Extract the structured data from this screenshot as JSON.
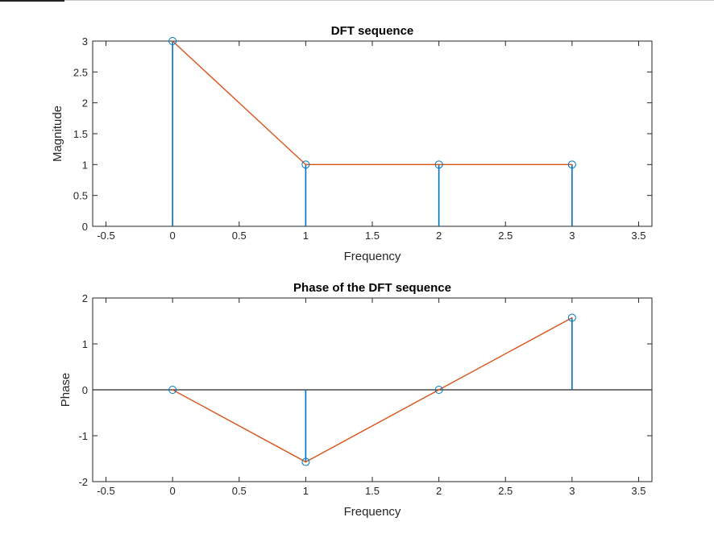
{
  "chart_data": [
    {
      "type": "stem",
      "title": "DFT sequence",
      "xlabel": "Frequency",
      "ylabel": "Magnitude",
      "xlim": [
        -0.6,
        3.6
      ],
      "ylim": [
        0,
        3
      ],
      "xticks": [
        "-0.5",
        "0",
        "0.5",
        "1",
        "1.5",
        "2",
        "2.5",
        "3",
        "3.5"
      ],
      "yticks": [
        "0",
        "0.5",
        "1",
        "1.5",
        "2",
        "2.5",
        "3"
      ],
      "x": [
        0,
        1,
        2,
        3
      ],
      "values": [
        3,
        1,
        1,
        1
      ],
      "baseline": false,
      "stem_color": "#0072BD",
      "line_color": "#D95319"
    },
    {
      "type": "stem",
      "title": "Phase of the DFT sequence",
      "xlabel": "Frequency",
      "ylabel": "Phase",
      "xlim": [
        -0.6,
        3.6
      ],
      "ylim": [
        -2,
        2
      ],
      "xticks": [
        "-0.5",
        "0",
        "0.5",
        "1",
        "1.5",
        "2",
        "2.5",
        "3",
        "3.5"
      ],
      "yticks": [
        "-2",
        "-1",
        "0",
        "1",
        "2"
      ],
      "x": [
        0,
        1,
        2,
        3
      ],
      "values": [
        0,
        -1.5708,
        0,
        1.5708
      ],
      "baseline": true,
      "stem_color": "#0072BD",
      "line_color": "#D95319"
    }
  ]
}
